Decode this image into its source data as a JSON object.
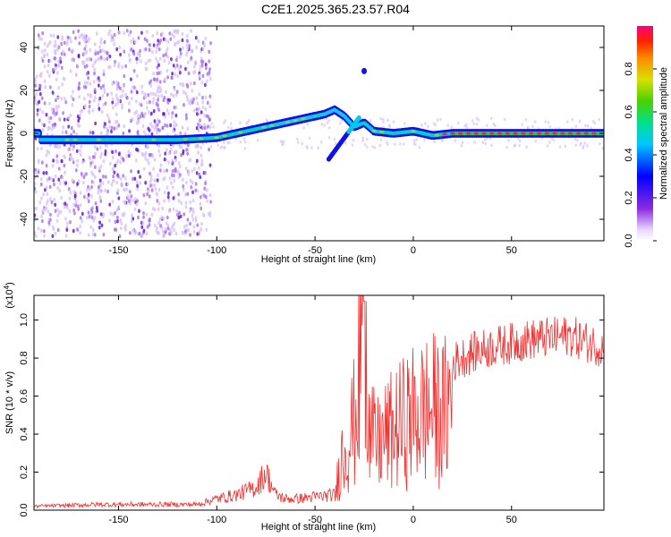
{
  "title": "C2E1.2025.365.23.57.R04",
  "chart_data": [
    {
      "type": "heatmap",
      "xlabel": "Height of straight line (km)",
      "ylabel": "Frequency (Hz)",
      "xlim": [
        -193,
        97
      ],
      "ylim": [
        -50,
        50
      ],
      "xticks": [
        -150,
        -100,
        -50,
        0,
        50
      ],
      "yticks": [
        -40,
        -20,
        0,
        20,
        40
      ],
      "colorbar": {
        "label": "Normalized spectral amplitude",
        "range": [
          0,
          1
        ],
        "ticks": [
          0.0,
          0.2,
          0.4,
          0.6,
          0.8
        ]
      },
      "ridge": {
        "description_points_x": [
          -190,
          -150,
          -120,
          -100,
          -85,
          -70,
          -55,
          -45,
          -40,
          -35,
          -30,
          -25,
          -20,
          -10,
          0,
          10,
          20,
          50,
          95
        ],
        "description_points_freq": [
          -3,
          -3,
          -3,
          -2,
          1,
          4,
          7,
          9,
          11,
          8,
          3,
          5,
          1,
          0,
          1,
          -1,
          0,
          0,
          0
        ]
      }
    },
    {
      "type": "line",
      "xlabel": "Height of straight line (km)",
      "ylabel": "SNR (10 * v/v)",
      "yscale_label": "(x10",
      "yscale_exp": "4",
      "xlim": [
        -193,
        97
      ],
      "ylim": [
        0,
        1.13
      ],
      "xticks": [
        -150,
        -100,
        -50,
        0,
        50
      ],
      "yticks": [
        0.0,
        0.2,
        0.4,
        0.6,
        0.8,
        1.0
      ],
      "series": [
        {
          "color": "#ee3333",
          "envelope_x": [
            -193,
            -160,
            -110,
            -100,
            -90,
            -80,
            -75,
            -70,
            -65,
            -60,
            -50,
            -40,
            -37,
            -34,
            -30,
            -27,
            -25,
            -22,
            -18,
            -15,
            -10,
            -5,
            0,
            5,
            10,
            15,
            20,
            30,
            40,
            50,
            60,
            70,
            80,
            90,
            97
          ],
          "envelope_y": [
            0.02,
            0.03,
            0.03,
            0.06,
            0.08,
            0.12,
            0.2,
            0.08,
            0.06,
            0.06,
            0.07,
            0.08,
            0.35,
            0.45,
            0.6,
            0.95,
            1.05,
            0.5,
            0.45,
            0.5,
            0.55,
            0.6,
            0.65,
            0.68,
            0.7,
            0.65,
            0.8,
            0.85,
            0.88,
            0.9,
            0.92,
            0.93,
            0.94,
            0.9,
            0.88
          ]
        }
      ]
    }
  ]
}
